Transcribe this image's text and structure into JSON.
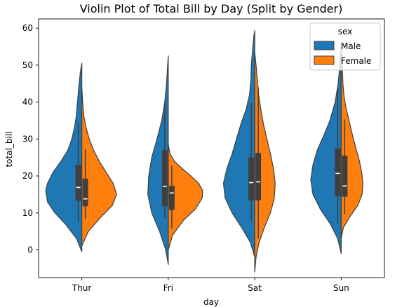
{
  "chart_data": {
    "type": "violin",
    "title": "Violin Plot of Total Bill by Day (Split by Gender)",
    "xlabel": "day",
    "ylabel": "total_bill",
    "categories": [
      "Thur",
      "Fri",
      "Sat",
      "Sun"
    ],
    "ylim": [
      -7.5,
      62.5
    ],
    "yticks": [
      0,
      10,
      20,
      30,
      40,
      50,
      60
    ],
    "grid": false,
    "legend": {
      "title": "sex",
      "position": "top-right"
    },
    "series": [
      {
        "name": "Male",
        "color": "#1f77b4",
        "stats": [
          {
            "q1": 13.3,
            "median": 16.9,
            "q3": 23.0,
            "whisker_low": 7.5,
            "whisker_high": 34.3
          },
          {
            "q1": 11.8,
            "median": 17.2,
            "q3": 27.0,
            "whisker_low": 8.5,
            "whisker_high": 40.2
          },
          {
            "q1": 13.4,
            "median": 18.2,
            "q3": 25.0,
            "whisker_low": 7.7,
            "whisker_high": 39.7
          },
          {
            "q1": 14.5,
            "median": 20.7,
            "q3": 27.4,
            "whisker_low": 7.2,
            "whisker_high": 44.0
          }
        ],
        "density": [
          {
            "grid": [
              -0.5,
              3,
              7,
              10,
              13,
              16,
              18,
              21,
              24,
              27,
              30,
              33,
              36,
              40,
              44,
              48,
              50.5
            ],
            "width": [
              0,
              0.12,
              0.38,
              0.62,
              0.79,
              0.83,
              0.79,
              0.66,
              0.48,
              0.32,
              0.23,
              0.17,
              0.13,
              0.1,
              0.07,
              0.035,
              0
            ]
          },
          {
            "grid": [
              -4,
              0,
              5,
              10,
              15,
              20,
              25,
              30,
              35,
              40,
              45,
              50,
              52.5
            ],
            "width": [
              0,
              0.06,
              0.2,
              0.38,
              0.47,
              0.45,
              0.38,
              0.26,
              0.15,
              0.08,
              0.04,
              0.015,
              0
            ]
          },
          {
            "grid": [
              -2,
              2,
              6,
              10,
              14,
              18,
              22,
              26,
              30,
              34,
              38,
              42,
              46,
              50,
              54,
              58,
              59.3
            ],
            "width": [
              0,
              0.1,
              0.3,
              0.52,
              0.68,
              0.72,
              0.64,
              0.52,
              0.42,
              0.32,
              0.2,
              0.12,
              0.09,
              0.08,
              0.05,
              0.02,
              0
            ]
          },
          {
            "grid": [
              -1,
              3,
              7,
              11,
              15,
              19,
              23,
              27,
              31,
              35,
              40,
              45,
              50,
              55
            ],
            "width": [
              0,
              0.08,
              0.25,
              0.48,
              0.65,
              0.7,
              0.65,
              0.55,
              0.4,
              0.26,
              0.14,
              0.07,
              0.03,
              0
            ]
          }
        ]
      },
      {
        "name": "Female",
        "color": "#ff7f0e",
        "stats": [
          {
            "q1": 11.8,
            "median": 13.8,
            "q3": 19.3,
            "whisker_low": 8.3,
            "whisker_high": 27.3
          },
          {
            "q1": 10.8,
            "median": 15.4,
            "q3": 17.3,
            "whisker_low": 5.8,
            "whisker_high": 22.8
          },
          {
            "q1": 13.4,
            "median": 18.4,
            "q3": 26.2,
            "whisker_low": 3.1,
            "whisker_high": 44.0
          },
          {
            "q1": 14.4,
            "median": 17.3,
            "q3": 25.5,
            "whisker_low": 9.6,
            "whisker_high": 35.3
          }
        ],
        "density": [
          {
            "grid": [
              1,
              5,
              9,
              12,
              15,
              18,
              21,
              24,
              27,
              30,
              33,
              36,
              40,
              44
            ],
            "width": [
              0,
              0.15,
              0.45,
              0.7,
              0.8,
              0.72,
              0.56,
              0.4,
              0.27,
              0.17,
              0.1,
              0.05,
              0.02,
              0
            ]
          },
          {
            "grid": [
              0,
              4,
              8,
              11,
              14,
              16,
              18,
              20,
              22,
              24,
              26,
              28.5
            ],
            "width": [
              0,
              0.1,
              0.35,
              0.62,
              0.78,
              0.79,
              0.7,
              0.52,
              0.32,
              0.14,
              0.04,
              0
            ]
          },
          {
            "grid": [
              -6,
              -2,
              2,
              6,
              10,
              14,
              18,
              22,
              26,
              30,
              34,
              38,
              42,
              46,
              50,
              53.5
            ],
            "width": [
              0,
              0.03,
              0.1,
              0.22,
              0.36,
              0.45,
              0.47,
              0.43,
              0.36,
              0.28,
              0.2,
              0.14,
              0.09,
              0.06,
              0.03,
              0
            ]
          },
          {
            "grid": [
              3,
              6,
              9,
              12,
              15,
              18,
              21,
              24,
              27,
              30,
              33,
              36,
              39,
              42,
              45,
              48,
              51,
              54,
              56
            ],
            "width": [
              0,
              0.05,
              0.2,
              0.38,
              0.48,
              0.5,
              0.47,
              0.42,
              0.35,
              0.28,
              0.22,
              0.16,
              0.1,
              0.06,
              0.04,
              0.03,
              0.02,
              0.01,
              0
            ]
          }
        ]
      }
    ]
  }
}
